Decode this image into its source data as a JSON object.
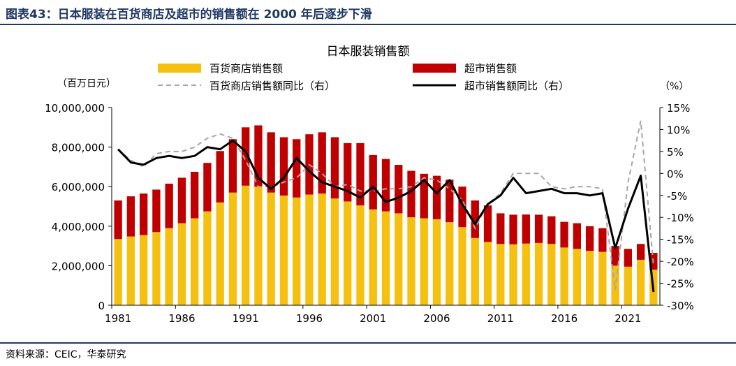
{
  "figure": {
    "title": "图表43：日本服装在百货商店及超市的销售额在 2000 年后逐步下滑",
    "source": "资料来源：CEIC，华泰研究"
  },
  "chart_data": {
    "type": "bar+line",
    "title": "日本服装销售额",
    "left_axis_unit": "（百万日元）",
    "right_axis_unit": "（%）",
    "ylim_left": [
      0,
      10000000
    ],
    "yticks_left": [
      "10,000,000",
      "8,000,000",
      "6,000,000",
      "4,000,000",
      "2,000,000",
      "0"
    ],
    "ylim_right": [
      -30,
      15
    ],
    "yticks_right": [
      "15%",
      "10%",
      "5%",
      "0%",
      "-5%",
      "-10%",
      "-15%",
      "-20%",
      "-25%",
      "-30%"
    ],
    "xtick_labels": [
      "1981",
      "1986",
      "1991",
      "1996",
      "2001",
      "2006",
      "2011",
      "2016",
      "2021"
    ],
    "years": [
      1981,
      1982,
      1983,
      1984,
      1985,
      1986,
      1987,
      1988,
      1989,
      1990,
      1991,
      1992,
      1993,
      1994,
      1995,
      1996,
      1997,
      1998,
      1999,
      2000,
      2001,
      2002,
      2003,
      2004,
      2005,
      2006,
      2007,
      2008,
      2009,
      2010,
      2011,
      2012,
      2013,
      2014,
      2015,
      2016,
      2017,
      2018,
      2019,
      2020,
      2021,
      2022,
      2023
    ],
    "legend": {
      "dept": "百货商店销售额",
      "super": "超市销售额",
      "dept_yoy": "百货商店销售额同比（右）",
      "super_yoy": "超市销售额同比（右）"
    },
    "colors": {
      "dept": "#f5c00f",
      "super": "#c00000",
      "dept_yoy": "#a6a6a6",
      "super_yoy": "#000000"
    },
    "series": [
      {
        "name": "百货商店销售额",
        "kind": "stacked-bar",
        "values": [
          3350000,
          3480000,
          3550000,
          3700000,
          3900000,
          4150000,
          4400000,
          4750000,
          5200000,
          5700000,
          6050000,
          6000000,
          5700000,
          5550000,
          5450000,
          5600000,
          5650000,
          5400000,
          5250000,
          5050000,
          4850000,
          4750000,
          4650000,
          4450000,
          4400000,
          4350000,
          4200000,
          3950000,
          3400000,
          3200000,
          3100000,
          3080000,
          3120000,
          3150000,
          3100000,
          2920000,
          2850000,
          2750000,
          2700000,
          2000000,
          1950000,
          2300000,
          1800000
        ]
      },
      {
        "name": "超市销售额",
        "kind": "stacked-bar",
        "values": [
          1950000,
          2030000,
          2100000,
          2150000,
          2250000,
          2300000,
          2350000,
          2450000,
          2600000,
          2700000,
          2950000,
          3100000,
          3050000,
          2950000,
          2950000,
          3050000,
          3100000,
          3100000,
          2950000,
          3150000,
          2750000,
          2650000,
          2450000,
          2350000,
          2250000,
          2200000,
          2150000,
          2050000,
          1900000,
          1850000,
          1550000,
          1500000,
          1470000,
          1430000,
          1400000,
          1300000,
          1300000,
          1250000,
          1200000,
          1000000,
          900000,
          800000,
          850000
        ]
      },
      {
        "name": "百货商店销售额同比（右）",
        "kind": "line",
        "dash": true,
        "values": [
          5.5,
          3,
          1.5,
          4.5,
          5,
          5,
          6,
          8,
          9,
          8,
          3,
          -3,
          -3,
          -2,
          -1,
          2,
          0,
          -3,
          -2.5,
          -4,
          -4,
          -3.5,
          -3.5,
          -3,
          -1,
          -1.5,
          -3.5,
          -6,
          -12.5,
          -7,
          -4.5,
          0,
          0,
          0,
          -3,
          -3.5,
          -3,
          -3,
          -3.5,
          -26.5,
          -2,
          12,
          -21
        ]
      },
      {
        "name": "超市销售额同比（右）",
        "kind": "line",
        "dash": false,
        "values": [
          5.5,
          2.5,
          2,
          3.5,
          4,
          3.5,
          4,
          6,
          5.5,
          7.5,
          5,
          -1,
          -3.5,
          -1,
          3.5,
          0.5,
          -2,
          -3,
          -4,
          -5.5,
          -3,
          -6.5,
          -5.5,
          -4,
          -1.5,
          -4.5,
          -1.5,
          -7,
          -11.5,
          -7,
          -5,
          -1,
          -4.5,
          -4,
          -3.5,
          -4.5,
          -4.5,
          -5,
          -4.5,
          -17,
          -8,
          -0.5,
          -27
        ]
      }
    ]
  }
}
